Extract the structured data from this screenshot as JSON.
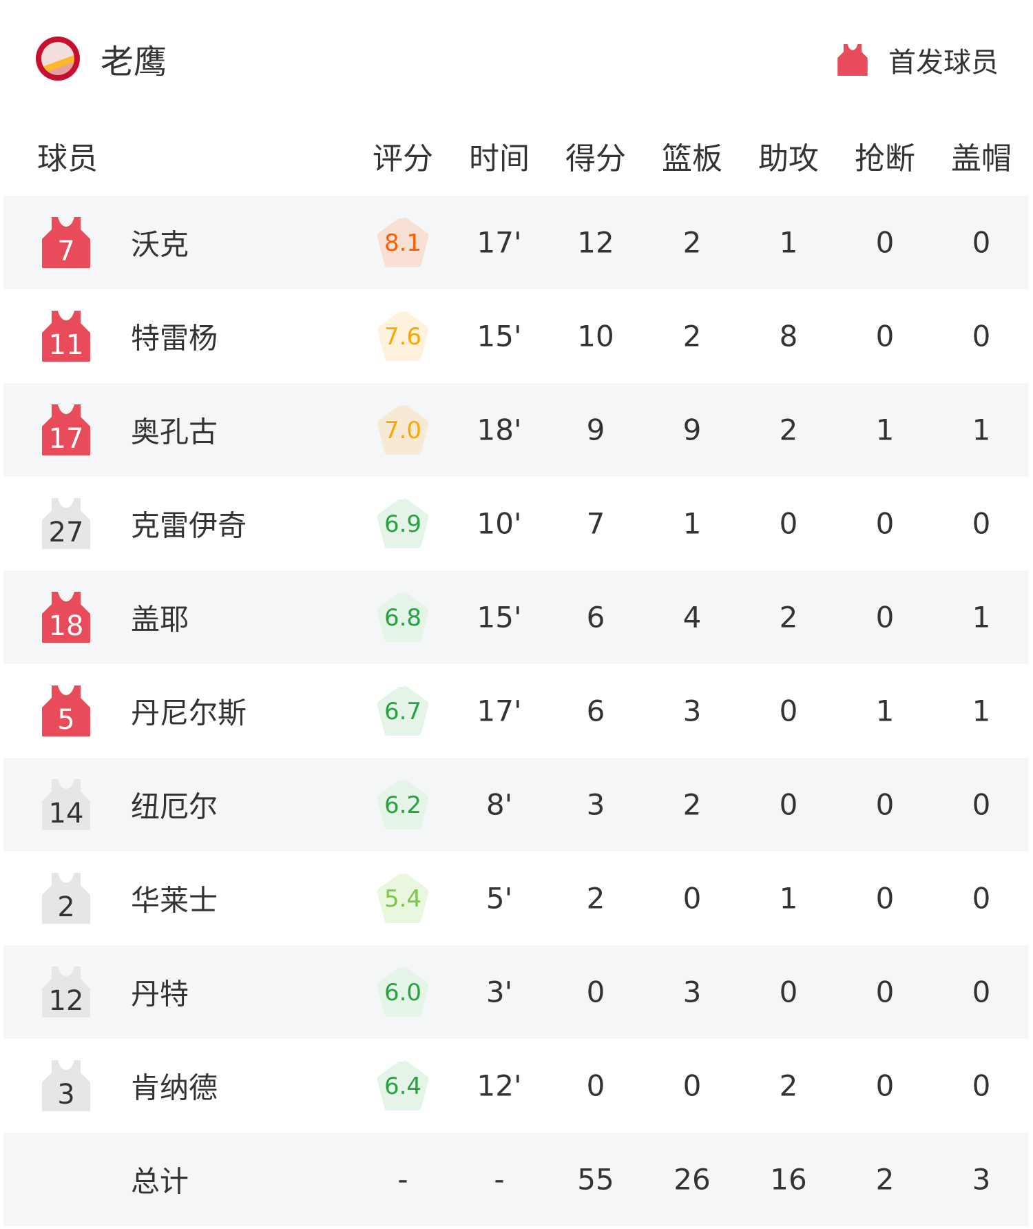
{
  "team": {
    "name": "老鹰",
    "logo": "hawks-logo"
  },
  "legend": {
    "label": "首发球员",
    "icon": "jersey-icon",
    "starter_color": "#e84c5a",
    "bench_color": "#e6e6e6"
  },
  "columns": [
    "球员",
    "评分",
    "时间",
    "得分",
    "篮板",
    "助攻",
    "抢断",
    "盖帽"
  ],
  "players": [
    {
      "number": "7",
      "name": "沃克",
      "starter": true,
      "rating": "8.1",
      "tier": "orange",
      "time": "17'",
      "pts": "12",
      "reb": "2",
      "ast": "1",
      "stl": "0",
      "blk": "0"
    },
    {
      "number": "11",
      "name": "特雷杨",
      "starter": true,
      "rating": "7.6",
      "tier": "yellow",
      "time": "15'",
      "pts": "10",
      "reb": "2",
      "ast": "8",
      "stl": "0",
      "blk": "0"
    },
    {
      "number": "17",
      "name": "奥孔古",
      "starter": true,
      "rating": "7.0",
      "tier": "yellow2",
      "time": "18'",
      "pts": "9",
      "reb": "9",
      "ast": "2",
      "stl": "1",
      "blk": "1"
    },
    {
      "number": "27",
      "name": "克雷伊奇",
      "starter": false,
      "rating": "6.9",
      "tier": "green",
      "time": "10'",
      "pts": "7",
      "reb": "1",
      "ast": "0",
      "stl": "0",
      "blk": "0"
    },
    {
      "number": "18",
      "name": "盖耶",
      "starter": true,
      "rating": "6.8",
      "tier": "green",
      "time": "15'",
      "pts": "6",
      "reb": "4",
      "ast": "2",
      "stl": "0",
      "blk": "1"
    },
    {
      "number": "5",
      "name": "丹尼尔斯",
      "starter": true,
      "rating": "6.7",
      "tier": "green",
      "time": "17'",
      "pts": "6",
      "reb": "3",
      "ast": "0",
      "stl": "1",
      "blk": "1"
    },
    {
      "number": "14",
      "name": "纽厄尔",
      "starter": false,
      "rating": "6.2",
      "tier": "green",
      "time": "8'",
      "pts": "3",
      "reb": "2",
      "ast": "0",
      "stl": "0",
      "blk": "0"
    },
    {
      "number": "2",
      "name": "华莱士",
      "starter": false,
      "rating": "5.4",
      "tier": "lightgreen",
      "time": "5'",
      "pts": "2",
      "reb": "0",
      "ast": "1",
      "stl": "0",
      "blk": "0"
    },
    {
      "number": "12",
      "name": "丹特",
      "starter": false,
      "rating": "6.0",
      "tier": "green",
      "time": "3'",
      "pts": "0",
      "reb": "3",
      "ast": "0",
      "stl": "0",
      "blk": "0"
    },
    {
      "number": "3",
      "name": "肯纳德",
      "starter": false,
      "rating": "6.4",
      "tier": "green",
      "time": "12'",
      "pts": "0",
      "reb": "0",
      "ast": "2",
      "stl": "0",
      "blk": "0"
    }
  ],
  "totals": {
    "label": "总计",
    "rating": "-",
    "time": "-",
    "pts": "55",
    "reb": "26",
    "ast": "16",
    "stl": "2",
    "blk": "3"
  },
  "tier_colors": {
    "orange": {
      "fg": "#ff5e00",
      "bg": "#f8dfd3"
    },
    "yellow": {
      "fg": "#ffa500",
      "bg": "#fff2dc"
    },
    "yellow2": {
      "fg": "#ffa500",
      "bg": "#f7ead5"
    },
    "green": {
      "fg": "#27a243",
      "bg": "#e4f4e6"
    },
    "lightgreen": {
      "fg": "#7ac943",
      "bg": "#e9f7df"
    }
  }
}
